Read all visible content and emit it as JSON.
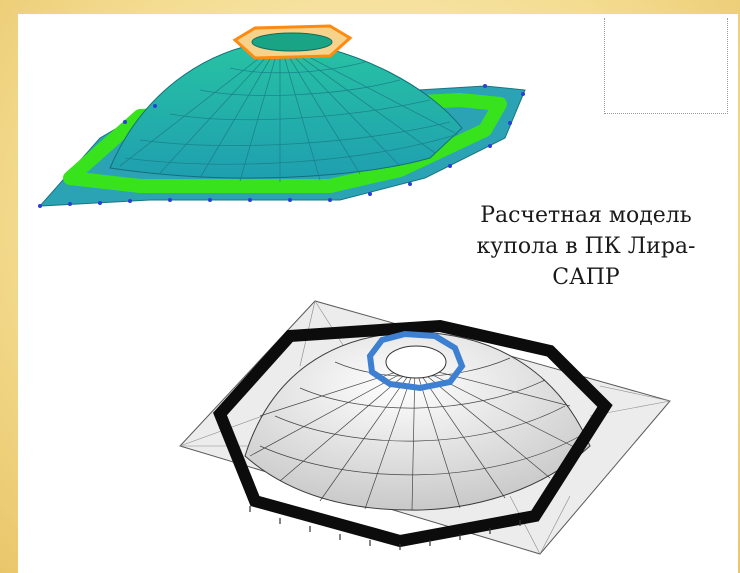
{
  "slide": {
    "background_color": "#f4dd92",
    "panel_color": "#ffffff"
  },
  "caption": {
    "line1": "Расчетная модель",
    "line2": "купола в ПК Лира-",
    "line3": "САПР"
  },
  "figures": {
    "top": {
      "colors": {
        "dome": "#2fb596",
        "dome_grid": "#1c7e86",
        "ring": "#33e61c",
        "top_ring": "#ff8c1a",
        "nodes": "#2a3fd6"
      }
    },
    "bottom": {
      "colors": {
        "dome": "#f2f2f2",
        "dome_grid": "#2b2b2b",
        "ring": "#0c0c0c",
        "top_ring": "#3d7fd0",
        "base": "#e6e6e6"
      }
    }
  }
}
